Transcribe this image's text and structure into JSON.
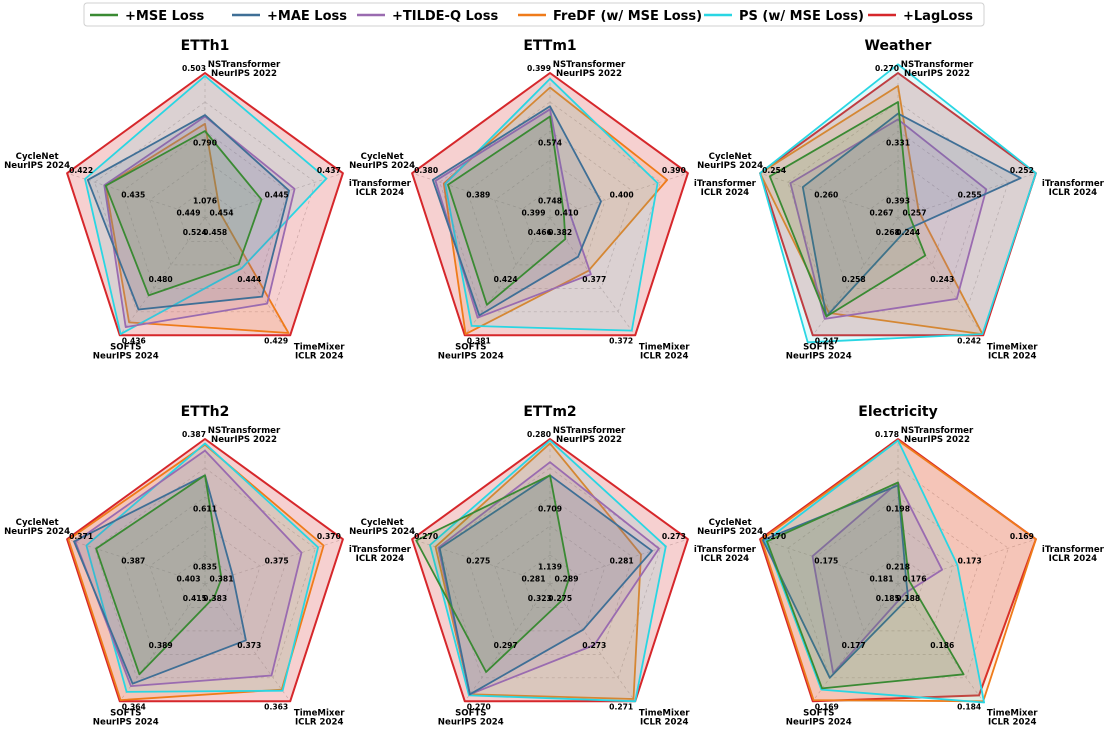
{
  "legend": [
    {
      "name": "+MSE Loss",
      "color": "#3a8a33"
    },
    {
      "name": "+MAE Loss",
      "color": "#3f6f96"
    },
    {
      "name": "+TILDE-Q Loss",
      "color": "#9a6bb0"
    },
    {
      "name": "FreDF (w/ MSE Loss)",
      "color": "#ef7b1a"
    },
    {
      "name": "PS (w/ MSE Loss)",
      "color": "#29d6e3"
    },
    {
      "name": "+LagLoss",
      "color": "#d6272b",
      "highlight": true
    }
  ],
  "axes": [
    {
      "line1": "NSTransformer",
      "line2": "NeurIPS 2022"
    },
    {
      "line1": "iTransformer",
      "line2": "ICLR 2024"
    },
    {
      "line1": "TimeMixer",
      "line2": "ICLR 2024"
    },
    {
      "line1": "SOFTS",
      "line2": "NeurIPS 2024"
    },
    {
      "line1": "CycleNet",
      "line2": "NeurIPS 2024"
    }
  ],
  "chart_data": [
    {
      "type": "radar",
      "title": "ETTh1",
      "tick_labels": [
        [
          "0.503",
          "0.790",
          "1.076"
        ],
        [
          "0.437",
          "0.445",
          "0.454"
        ],
        [
          "0.429",
          "0.444",
          "0.458"
        ],
        [
          "0.436",
          "0.480",
          "0.524"
        ],
        [
          "0.422",
          "0.435",
          "0.449"
        ]
      ],
      "series": [
        {
          "name": "+MSE Loss",
          "values": [
            0.6,
            0.41,
            0.395,
            0.66,
            0.72
          ]
        },
        {
          "name": "+MAE Loss",
          "values": [
            0.71,
            0.61,
            0.67,
            0.78,
            0.85
          ]
        },
        {
          "name": "+TILDE-Q Loss",
          "values": [
            0.7,
            0.65,
            0.73,
            0.93,
            0.73
          ]
        },
        {
          "name": "FreDF (w/ MSE Loss)",
          "values": [
            0.65,
            0.11,
            0.98,
            0.89,
            0.72
          ]
        },
        {
          "name": "PS (w/ MSE Loss)",
          "values": [
            0.98,
            0.88,
            0.43,
            0.99,
            0.87
          ]
        },
        {
          "name": "+LagLoss",
          "values": [
            1,
            1,
            1,
            1,
            1
          ]
        }
      ]
    },
    {
      "type": "radar",
      "title": "ETTm1",
      "tick_labels": [
        [
          "0.399",
          "0.574",
          "0.748"
        ],
        [
          "0.390",
          "0.400",
          "0.410"
        ],
        [
          "0.372",
          "0.377",
          "0.382"
        ],
        [
          "0.381",
          "0.424",
          "0.466"
        ],
        [
          "0.380",
          "0.389",
          "0.399"
        ]
      ],
      "series": [
        {
          "name": "+MSE Loss",
          "values": [
            0.7,
            0.1,
            0.18,
            0.74,
            0.74
          ]
        },
        {
          "name": "+MAE Loss",
          "values": [
            0.77,
            0.37,
            0.33,
            0.83,
            0.85
          ]
        },
        {
          "name": "+TILDE-Q Loss",
          "values": [
            0.75,
            0.14,
            0.48,
            0.85,
            0.83
          ]
        },
        {
          "name": "FreDF (w/ MSE Loss)",
          "values": [
            0.9,
            0.85,
            0.45,
            0.99,
            0.77
          ]
        },
        {
          "name": "PS (w/ MSE Loss)",
          "values": [
            0.96,
            0.78,
            0.96,
            0.92,
            0.76
          ]
        },
        {
          "name": "+LagLoss",
          "values": [
            1,
            1,
            1,
            1,
            1
          ]
        }
      ]
    },
    {
      "type": "radar",
      "title": "Weather",
      "tick_labels": [
        [
          "0.270",
          "0.331",
          "0.393"
        ],
        [
          "0.252",
          "0.255",
          "0.257"
        ],
        [
          "0.242",
          "0.243",
          "0.244"
        ],
        [
          "0.247",
          "0.258",
          "0.268"
        ],
        [
          "0.254",
          "0.260",
          "0.267"
        ]
      ],
      "series": [
        {
          "name": "+MSE Loss",
          "values": [
            0.8,
            0.08,
            0.32,
            0.84,
            0.93
          ]
        },
        {
          "name": "+MAE Loss",
          "values": [
            0.72,
            0.89,
            0.1,
            0.84,
            0.69
          ]
        },
        {
          "name": "+TILDE-Q Loss",
          "values": [
            0.68,
            0.64,
            0.69,
            0.86,
            0.78
          ]
        },
        {
          "name": "FreDF (w/ MSE Loss)",
          "values": [
            0.91,
            0.15,
            0.99,
            0.81,
            1.0
          ]
        },
        {
          "name": "PS (w/ MSE Loss)",
          "values": [
            1.06,
            1.0,
            0.99,
            1.06,
            1.0
          ]
        },
        {
          "name": "+LagLoss",
          "values": [
            1,
            1,
            1,
            1,
            1
          ]
        }
      ]
    },
    {
      "type": "radar",
      "title": "ETTh2",
      "tick_labels": [
        [
          "0.387",
          "0.611",
          "0.835"
        ],
        [
          "0.370",
          "0.375",
          "0.381"
        ],
        [
          "0.363",
          "0.373",
          "0.383"
        ],
        [
          "0.364",
          "0.389",
          "0.415"
        ],
        [
          "0.371",
          "0.387",
          "0.403"
        ]
      ],
      "series": [
        {
          "name": "+MSE Loss",
          "values": [
            0.75,
            0.12,
            0.11,
            0.77,
            0.79
          ]
        },
        {
          "name": "+MAE Loss",
          "values": [
            0.75,
            0.2,
            0.48,
            0.85,
            0.95
          ]
        },
        {
          "name": "+TILDE-Q Loss",
          "values": [
            0.92,
            0.7,
            0.78,
            0.87,
            0.94
          ]
        },
        {
          "name": "FreDF (w/ MSE Loss)",
          "values": [
            0.96,
            0.86,
            0.9,
            0.99,
            0.99
          ]
        },
        {
          "name": "PS (w/ MSE Loss)",
          "values": [
            0.97,
            0.82,
            0.91,
            0.92,
            0.86
          ]
        },
        {
          "name": "+LagLoss",
          "values": [
            1,
            1,
            1,
            1,
            1
          ]
        }
      ]
    },
    {
      "type": "radar",
      "title": "ETTm2",
      "tick_labels": [
        [
          "0.280",
          "0.709",
          "1.139"
        ],
        [
          "0.273",
          "0.281",
          "0.289"
        ],
        [
          "0.271",
          "0.273",
          "0.275"
        ],
        [
          "0.270",
          "0.297",
          "0.323"
        ],
        [
          "0.270",
          "0.275",
          "0.281"
        ]
      ],
      "series": [
        {
          "name": "+MSE Loss",
          "values": [
            0.75,
            0.14,
            0.14,
            0.75,
            0.97
          ]
        },
        {
          "name": "+MAE Loss",
          "values": [
            0.75,
            0.74,
            0.39,
            0.94,
            0.8
          ]
        },
        {
          "name": "+TILDE-Q Loss",
          "values": [
            0.84,
            0.79,
            0.52,
            0.94,
            0.81
          ]
        },
        {
          "name": "FreDF (w/ MSE Loss)",
          "values": [
            0.97,
            0.66,
            0.98,
            0.94,
            0.83
          ]
        },
        {
          "name": "PS (w/ MSE Loss)",
          "values": [
            0.99,
            0.84,
            1.0,
            0.95,
            0.87
          ]
        },
        {
          "name": "+LagLoss",
          "values": [
            1,
            1,
            1,
            1,
            1
          ]
        }
      ]
    },
    {
      "type": "radar",
      "title": "Electricity",
      "tick_labels": [
        [
          "0.178",
          "0.198",
          "0.218"
        ],
        [
          "0.169",
          "0.173",
          "0.176"
        ],
        [
          "0.184",
          "0.186",
          "0.188"
        ],
        [
          "0.169",
          "0.177",
          "0.185"
        ],
        [
          "0.170",
          "0.175",
          "0.181"
        ]
      ],
      "series": [
        {
          "name": "+MSE Loss",
          "values": [
            0.7,
            0.08,
            0.77,
            0.89,
            0.95
          ]
        },
        {
          "name": "+MAE Loss",
          "values": [
            0.68,
            0.06,
            0.12,
            0.8,
            0.98
          ]
        },
        {
          "name": "+TILDE-Q Loss",
          "values": [
            0.7,
            0.32,
            0.08,
            0.76,
            0.62
          ]
        },
        {
          "name": "FreDF (w/ MSE Loss)",
          "values": [
            0.99,
            1.0,
            1.0,
            0.99,
            0.99
          ]
        },
        {
          "name": "PS (w/ MSE Loss)",
          "values": [
            0.99,
            0.43,
            1.01,
            0.9,
            0.96
          ]
        },
        {
          "name": "+LagLoss",
          "values": [
            1,
            1,
            0.95,
            1,
            1
          ]
        }
      ]
    }
  ]
}
